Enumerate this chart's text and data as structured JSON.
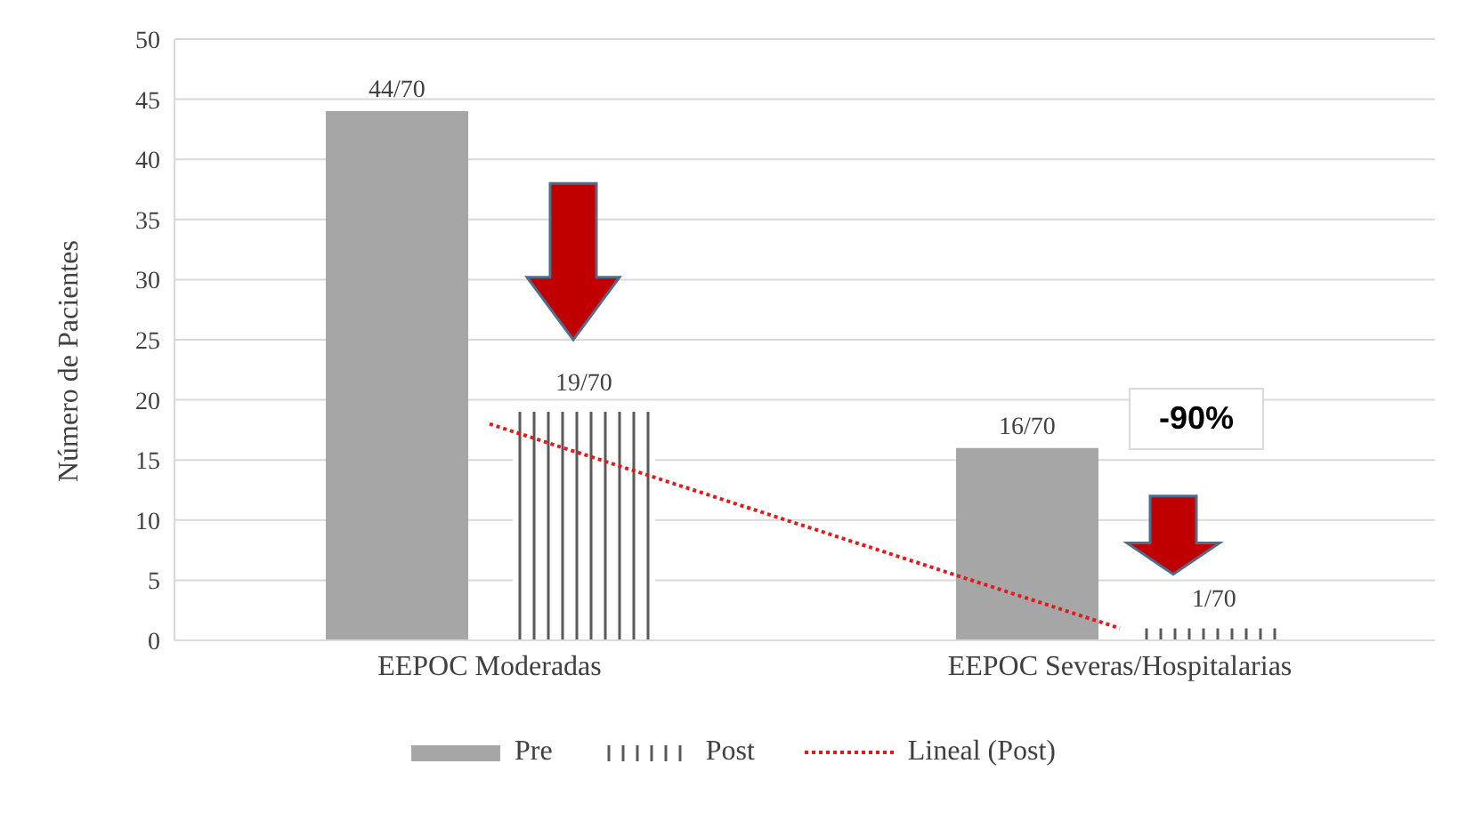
{
  "chart_data": {
    "type": "bar",
    "ylabel": "Número de Pacientes",
    "categories": [
      "EEPOC Moderadas",
      "EEPOC Severas/Hospitalarias"
    ],
    "series": [
      {
        "name": "Pre",
        "color": "#a6a6a6",
        "values": [
          44,
          16
        ],
        "value_labels": [
          "44/70",
          "16/70"
        ]
      },
      {
        "name": "Post",
        "color": "#595959",
        "values": [
          19,
          1
        ],
        "value_labels": [
          "19/70",
          "1/70"
        ]
      },
      {
        "name": "Lineal (Post)",
        "type": "line",
        "color": "#e31a1c",
        "line_style": "dotted",
        "values": [
          18,
          1
        ]
      }
    ],
    "ylim": [
      0,
      50
    ],
    "yticks": [
      0,
      5,
      10,
      15,
      20,
      25,
      30,
      35,
      40,
      45,
      50
    ],
    "grid": "y",
    "legend": "bottom",
    "annotations": [
      "-90%"
    ]
  }
}
